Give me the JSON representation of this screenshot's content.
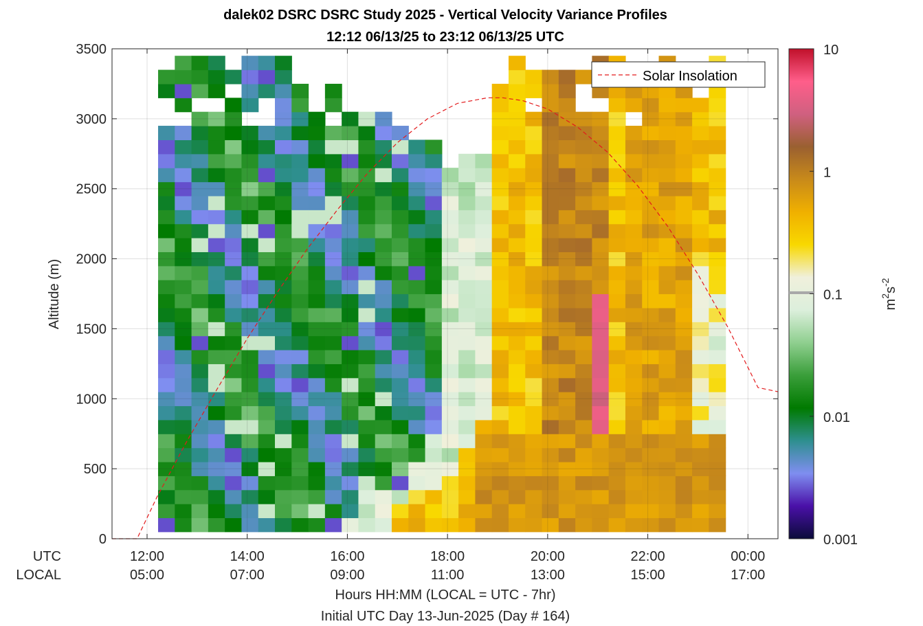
{
  "chart_data": {
    "type": "heatmap",
    "title": "dalek02 DSRC DSRC Study 2025 - Vertical Velocity Variance Profiles",
    "subtitle": "12:12 06/13/25 to 23:12 06/13/25  UTC",
    "ylabel": "Altitude (m)",
    "xlabel": "Hours HH:MM  (LOCAL = UTC - 7hr)",
    "xlabel2": "Initial UTC Day 13-Jun-2025 (Day # 164)",
    "ylim": [
      0,
      3500
    ],
    "xlim_hours": [
      11.3,
      24.6
    ],
    "yticks": [
      "0",
      "500",
      "1000",
      "1500",
      "2000",
      "2500",
      "3000",
      "3500"
    ],
    "ytick_values": [
      0,
      500,
      1000,
      1500,
      2000,
      2500,
      3000,
      3500
    ],
    "xtick_hours": [
      12,
      14,
      16,
      18,
      20,
      22,
      24
    ],
    "xtick_utc": [
      "12:00",
      "14:00",
      "16:00",
      "18:00",
      "20:00",
      "22:00",
      "00:00"
    ],
    "xtick_local": [
      "05:00",
      "07:00",
      "09:00",
      "11:00",
      "13:00",
      "15:00",
      "17:00"
    ],
    "row_label_utc": "UTC",
    "row_label_local": "LOCAL",
    "grid": true,
    "legend": {
      "position": "top-right",
      "entries": [
        "Solar Insolation"
      ]
    },
    "line_color": "#e31a1c",
    "colorbar": {
      "label_base": "m",
      "label_sup1": "2",
      "label_mid": "s",
      "label_sup2": "-2",
      "scale": "log",
      "range": [
        0.001,
        10
      ],
      "ticks": [
        "0.001",
        "0.01",
        "0.1",
        "1",
        "10"
      ],
      "tick_values": [
        0.001,
        0.01,
        0.1,
        1,
        10
      ],
      "colors": [
        "#0b0b3a",
        "#4a10a8",
        "#7f8ef0",
        "#2e8f8f",
        "#007a00",
        "#3a9e3a",
        "#8fcf8f",
        "#dcefdc",
        "#f0f0dc",
        "#f8d800",
        "#f0b000",
        "#c88a1a",
        "#9a6030",
        "#d06080",
        "#ff5e8a",
        "#c0102a"
      ]
    },
    "profiles": {
      "time_start_hours": 12.22,
      "time_step_hours": 0.3333,
      "alt_start_m": 100,
      "alt_step_m": 100,
      "n_times": 34,
      "n_alts": 34
    },
    "solar_insolation": {
      "x_hours": [
        11.3,
        11.55,
        11.8,
        12.2,
        12.8,
        13.4,
        14.0,
        14.6,
        15.2,
        15.8,
        16.4,
        17.0,
        17.6,
        18.2,
        18.8,
        19.1,
        19.5,
        20.0,
        20.6,
        21.2,
        21.8,
        22.4,
        23.0,
        23.6,
        24.2,
        24.6
      ],
      "y_m": [
        0,
        0,
        0,
        300,
        700,
        1070,
        1430,
        1760,
        2070,
        2350,
        2610,
        2830,
        3000,
        3110,
        3150,
        3150,
        3130,
        3070,
        2940,
        2760,
        2520,
        2230,
        1890,
        1510,
        1080,
        1050
      ]
    }
  }
}
